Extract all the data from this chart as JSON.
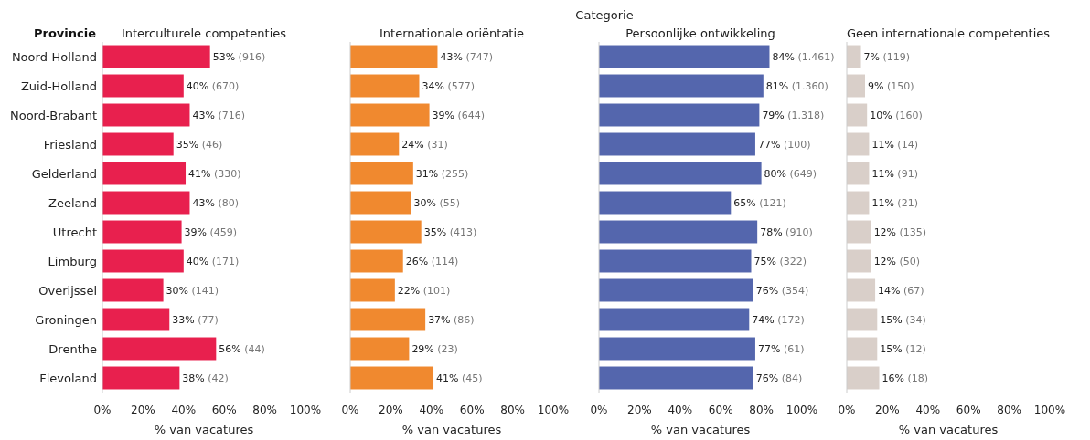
{
  "chart_data": [
    {
      "type": "bar",
      "orientation": "horizontal",
      "title": "Interculturele competenties",
      "ylabel": "Provincie",
      "xlabel": "% van vacatures",
      "annotations": [
        "Categorie"
      ],
      "categories": [
        "Noord-Holland",
        "Zuid-Holland",
        "Noord-Brabant",
        "Friesland",
        "Gelderland",
        "Zeeland",
        "Utrecht",
        "Limburg",
        "Overijssel",
        "Groningen",
        "Drenthe",
        "Flevoland"
      ],
      "color": "#e8204e",
      "values": [
        53,
        40,
        43,
        35,
        41,
        43,
        39,
        40,
        30,
        33,
        56,
        38
      ],
      "value_labels": [
        "53% (916)",
        "40% (670)",
        "43% (716)",
        "35% (46)",
        "41% (330)",
        "43% (80)",
        "39% (459)",
        "40% (171)",
        "30% (141)",
        "33% (77)",
        "56% (44)",
        "38% (42)"
      ],
      "xlim": [
        0,
        100
      ],
      "xticks": [
        {
          "value": 0,
          "label": "0%"
        },
        {
          "value": 20,
          "label": "20%"
        },
        {
          "value": 40,
          "label": "40%"
        },
        {
          "value": 60,
          "label": "60%"
        },
        {
          "value": 80,
          "label": "80%"
        },
        {
          "value": 100,
          "label": "100%"
        }
      ],
      "grid": false
    },
    {
      "type": "bar",
      "orientation": "horizontal",
      "title": "Internationale oriëntatie",
      "xlabel": "% van vacatures",
      "color": "#f0892f",
      "values": [
        43,
        34,
        39,
        24,
        31,
        30,
        35,
        26,
        22,
        37,
        29,
        41
      ],
      "value_labels": [
        "43% (747)",
        "34% (577)",
        "39% (644)",
        "24% (31)",
        "31% (255)",
        "30% (55)",
        "35% (413)",
        "26% (114)",
        "22% (101)",
        "37% (86)",
        "29% (23)",
        "41% (45)"
      ],
      "xlim": [
        0,
        100
      ],
      "xticks": [
        {
          "value": 0,
          "label": "0%"
        },
        {
          "value": 20,
          "label": "20%"
        },
        {
          "value": 40,
          "label": "40%"
        },
        {
          "value": 60,
          "label": "60%"
        },
        {
          "value": 80,
          "label": "80%"
        },
        {
          "value": 100,
          "label": "100%"
        }
      ],
      "tick_labels": "x",
      "grid": false
    },
    {
      "type": "bar",
      "orientation": "horizontal",
      "title": "Persoonlijke ontwikkeling",
      "xlabel": "% van vacatures",
      "color": "#5466ad",
      "values": [
        84,
        81,
        79,
        77,
        80,
        65,
        78,
        75,
        76,
        74,
        77,
        76
      ],
      "value_labels": [
        "84% (1.461)",
        "81% (1.360)",
        "79% (1.318)",
        "77% (100)",
        "80% (649)",
        "65% (121)",
        "78% (910)",
        "75% (322)",
        "76% (354)",
        "74% (172)",
        "77% (61)",
        "76% (84)"
      ],
      "xlim": [
        0,
        100
      ],
      "xticks": [
        {
          "value": 0,
          "label": "0%"
        },
        {
          "value": 20,
          "label": "20%"
        },
        {
          "value": 40,
          "label": "40%"
        },
        {
          "value": 60,
          "label": "60%"
        },
        {
          "value": 80,
          "label": "80%"
        },
        {
          "value": 100,
          "label": "100%"
        }
      ],
      "tick_labels": "x",
      "grid": false
    },
    {
      "type": "bar",
      "orientation": "horizontal",
      "title": "Geen internationale competenties",
      "xlabel": "% van vacatures",
      "color": "#d9cfc9",
      "values": [
        7,
        9,
        10,
        11,
        11,
        11,
        12,
        12,
        14,
        15,
        15,
        16
      ],
      "value_labels": [
        "7% (119)",
        "9% (150)",
        "10% (160)",
        "11% (14)",
        "11% (91)",
        "11% (21)",
        "12% (135)",
        "12% (50)",
        "14% (67)",
        "15% (34)",
        "15% (12)",
        "16% (18)"
      ],
      "xlim": [
        0,
        100
      ],
      "xticks": [
        {
          "value": 0,
          "label": "0%"
        },
        {
          "value": 20,
          "label": "20%"
        },
        {
          "value": 40,
          "label": "40%"
        },
        {
          "value": 60,
          "label": "60%"
        },
        {
          "value": 80,
          "label": "80%"
        },
        {
          "value": 100,
          "label": "100%"
        }
      ],
      "tick_labels": "x",
      "grid": false
    }
  ]
}
